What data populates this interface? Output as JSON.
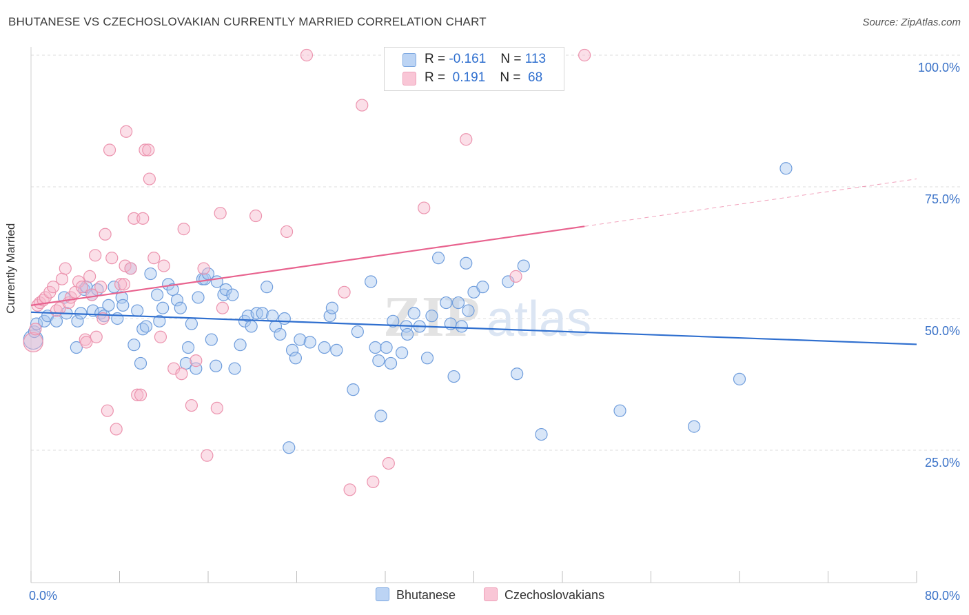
{
  "title": "BHUTANESE VS CZECHOSLOVAKIAN CURRENTLY MARRIED CORRELATION CHART",
  "source": "Source: ZipAtlas.com",
  "watermark": "ZIPatlas",
  "legend": {
    "rows": [
      {
        "r_label": "R =",
        "r_value": "-0.161",
        "n_label": "N =",
        "n_value": "113"
      },
      {
        "r_label": "R =",
        "r_value": " 0.191",
        "n_label": "N =",
        "n_value": " 68"
      }
    ]
  },
  "bottom_legend": [
    "Bhutanese",
    "Czechoslovakians"
  ],
  "colors": {
    "blue_fill": "#a9c8f0",
    "blue_stroke": "#6f9ddc",
    "blue_line": "#2f6fcf",
    "pink_fill": "#f6b8cb",
    "pink_stroke": "#ec93ae",
    "pink_line": "#e8628e",
    "tick_text": "#3a72c8",
    "grid": "#dedede"
  },
  "chart_data": {
    "type": "scatter",
    "title": "BHUTANESE VS CZECHOSLOVAKIAN CURRENTLY MARRIED CORRELATION CHART",
    "xlabel": "",
    "ylabel": "Currently Married",
    "xlim": [
      0,
      80
    ],
    "ylim": [
      0,
      105
    ],
    "x_tick_labels": [
      "0.0%",
      "80.0%"
    ],
    "y_ticks": [
      25,
      50,
      75,
      100
    ],
    "y_tick_labels": [
      "25.0%",
      "50.0%",
      "75.0%",
      "100.0%"
    ],
    "grid": "dashed horizontal",
    "legend_position": "top-center",
    "series": [
      {
        "name": "Bhutanese",
        "color": "#a9c8f0",
        "trend": {
          "x": [
            0,
            80
          ],
          "y": [
            51.2,
            45.1
          ],
          "dashed_from": null
        },
        "points": [
          [
            0.2,
            46
          ],
          [
            0.3,
            47.5
          ],
          [
            0.5,
            49
          ],
          [
            1.2,
            49.5
          ],
          [
            1.5,
            50.5
          ],
          [
            2.3,
            49.5
          ],
          [
            3,
            54
          ],
          [
            3.2,
            51
          ],
          [
            4.2,
            49.5
          ],
          [
            4.1,
            44.5
          ],
          [
            4.5,
            51
          ],
          [
            4.8,
            55.5
          ],
          [
            5,
            56
          ],
          [
            5.5,
            54.5
          ],
          [
            5.6,
            51.5
          ],
          [
            6,
            55.5
          ],
          [
            6.3,
            51
          ],
          [
            6.6,
            50.5
          ],
          [
            7,
            52.5
          ],
          [
            7.5,
            56
          ],
          [
            7.8,
            50
          ],
          [
            8.2,
            54
          ],
          [
            8.3,
            52.5
          ],
          [
            9,
            59.5
          ],
          [
            9.3,
            45
          ],
          [
            9.6,
            51.5
          ],
          [
            9.9,
            41.5
          ],
          [
            10.1,
            48
          ],
          [
            10.4,
            48.5
          ],
          [
            10.8,
            58.5
          ],
          [
            11.4,
            54.5
          ],
          [
            11.6,
            49.5
          ],
          [
            11.9,
            52
          ],
          [
            12.4,
            56.5
          ],
          [
            12.8,
            55.5
          ],
          [
            13.2,
            53.5
          ],
          [
            13.5,
            52
          ],
          [
            14,
            41.5
          ],
          [
            14.2,
            44.5
          ],
          [
            14.5,
            49
          ],
          [
            14.9,
            40.5
          ],
          [
            15.1,
            54
          ],
          [
            15.5,
            57.5
          ],
          [
            15.7,
            57.5
          ],
          [
            16,
            58.5
          ],
          [
            16.3,
            46
          ],
          [
            16.7,
            41
          ],
          [
            16.8,
            57
          ],
          [
            17.4,
            54.5
          ],
          [
            17.6,
            55.5
          ],
          [
            18.2,
            54.5
          ],
          [
            18.4,
            40.5
          ],
          [
            18.9,
            45
          ],
          [
            19.3,
            49.5
          ],
          [
            19.6,
            50.5
          ],
          [
            19.9,
            48.5
          ],
          [
            20.4,
            51
          ],
          [
            20.9,
            51
          ],
          [
            21.3,
            56
          ],
          [
            21.8,
            50.5
          ],
          [
            22.1,
            48.5
          ],
          [
            22.5,
            47
          ],
          [
            22.9,
            50
          ],
          [
            23.3,
            25.5
          ],
          [
            23.6,
            44
          ],
          [
            23.9,
            42.5
          ],
          [
            24.3,
            46
          ],
          [
            25.2,
            45.5
          ],
          [
            26.5,
            44.5
          ],
          [
            27,
            50.5
          ],
          [
            27.2,
            52
          ],
          [
            27.6,
            44
          ],
          [
            29.1,
            36.5
          ],
          [
            29.5,
            47.5
          ],
          [
            30.7,
            57
          ],
          [
            31.1,
            44.5
          ],
          [
            31.4,
            42
          ],
          [
            31.6,
            31.5
          ],
          [
            32.1,
            44.5
          ],
          [
            32.5,
            41.5
          ],
          [
            32.7,
            49.5
          ],
          [
            33.5,
            43.5
          ],
          [
            33.9,
            48.5
          ],
          [
            34,
            47
          ],
          [
            34.6,
            51
          ],
          [
            35.1,
            48.5
          ],
          [
            35.8,
            42.5
          ],
          [
            36.2,
            50.5
          ],
          [
            36.8,
            61.5
          ],
          [
            37.5,
            53
          ],
          [
            37.9,
            49
          ],
          [
            38.2,
            39
          ],
          [
            38.6,
            53
          ],
          [
            38.9,
            48.5
          ],
          [
            39.3,
            60.5
          ],
          [
            39.5,
            51.5
          ],
          [
            40,
            55
          ],
          [
            40.8,
            56
          ],
          [
            43.1,
            57
          ],
          [
            43.9,
            39.5
          ],
          [
            44.5,
            60
          ],
          [
            46.1,
            28
          ],
          [
            53.2,
            32.5
          ],
          [
            59.9,
            29.5
          ],
          [
            64,
            38.5
          ],
          [
            68.2,
            78.5
          ]
        ]
      },
      {
        "name": "Czechoslovakians",
        "color": "#f6b8cb",
        "trend": {
          "x": [
            0,
            50
          ],
          "y": [
            52.5,
            67.5
          ],
          "dashed_from": 50,
          "dashed_to": [
            80,
            76.5
          ]
        },
        "points": [
          [
            0.2,
            45.5
          ],
          [
            0.4,
            48
          ],
          [
            0.6,
            52.5
          ],
          [
            0.8,
            53
          ],
          [
            1.1,
            53.5
          ],
          [
            1.3,
            54
          ],
          [
            1.7,
            55
          ],
          [
            2,
            56
          ],
          [
            2.3,
            51.5
          ],
          [
            2.6,
            52
          ],
          [
            2.8,
            57.5
          ],
          [
            3.1,
            59.5
          ],
          [
            3.4,
            53
          ],
          [
            3.6,
            54
          ],
          [
            4,
            55
          ],
          [
            4.3,
            57
          ],
          [
            4.6,
            56
          ],
          [
            4.9,
            46
          ],
          [
            5,
            45.5
          ],
          [
            5.3,
            58
          ],
          [
            5.5,
            54.5
          ],
          [
            5.8,
            62
          ],
          [
            5.9,
            46.5
          ],
          [
            6.3,
            56
          ],
          [
            6.5,
            50
          ],
          [
            6.7,
            66
          ],
          [
            6.9,
            32.5
          ],
          [
            7.1,
            82
          ],
          [
            7.3,
            61.5
          ],
          [
            7.7,
            29
          ],
          [
            8.1,
            56.5
          ],
          [
            8.4,
            56.5
          ],
          [
            8.5,
            60
          ],
          [
            8.6,
            85.5
          ],
          [
            9,
            59.5
          ],
          [
            9.3,
            69
          ],
          [
            9.6,
            35.5
          ],
          [
            9.9,
            35.5
          ],
          [
            10.1,
            69
          ],
          [
            10.3,
            82
          ],
          [
            10.6,
            82
          ],
          [
            10.7,
            76.5
          ],
          [
            11.1,
            61.5
          ],
          [
            11.7,
            46.5
          ],
          [
            12,
            60
          ],
          [
            12.9,
            40.5
          ],
          [
            13.6,
            39.5
          ],
          [
            13.8,
            67
          ],
          [
            14.5,
            33.5
          ],
          [
            14.9,
            42
          ],
          [
            15.6,
            59.5
          ],
          [
            15.9,
            24
          ],
          [
            16.8,
            33
          ],
          [
            17.1,
            70
          ],
          [
            17.3,
            52
          ],
          [
            20.3,
            69.5
          ],
          [
            23.1,
            66.5
          ],
          [
            24.9,
            100
          ],
          [
            28.3,
            55
          ],
          [
            28.8,
            17.5
          ],
          [
            29.9,
            90.5
          ],
          [
            30.9,
            19
          ],
          [
            32.3,
            22.5
          ],
          [
            35.5,
            71
          ],
          [
            39.3,
            84
          ],
          [
            43.8,
            58
          ],
          [
            50,
            100
          ]
        ]
      }
    ]
  }
}
